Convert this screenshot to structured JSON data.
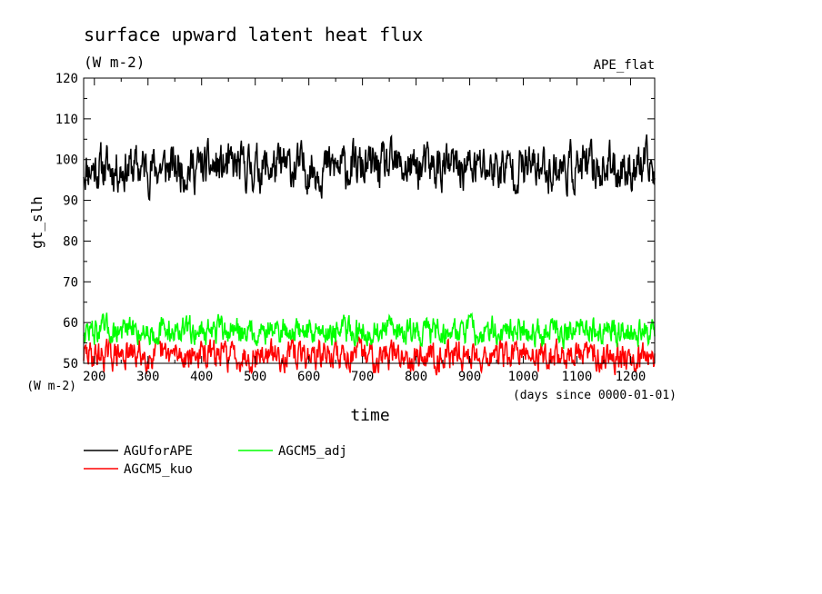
{
  "chart_data": {
    "type": "line",
    "title": "surface upward latent heat flux",
    "subtitle": "(W m-2)",
    "top_right_label": "APE_flat",
    "xlabel": "time",
    "x_unit_note": "(days since 0000-01-01)",
    "ylabel": "gt_slh",
    "y_unit_note": "(W m-2)",
    "xlim": [
      180,
      1245
    ],
    "ylim": [
      50,
      120
    ],
    "x_ticks": [
      200,
      300,
      400,
      500,
      600,
      700,
      800,
      900,
      1000,
      1100,
      1200
    ],
    "x_tick_labels": [
      "200",
      "300",
      "400",
      "500",
      "600",
      "700",
      "800",
      "900",
      "1000",
      "1100",
      "1200"
    ],
    "y_ticks": [
      50,
      60,
      70,
      80,
      90,
      100,
      110,
      120
    ],
    "y_tick_labels": [
      "50",
      "60",
      "70",
      "80",
      "90",
      "100",
      "110",
      "120"
    ],
    "grid": false,
    "legend_placement": "below",
    "series": [
      {
        "name": "AGUforAPE",
        "color": "#000000",
        "x": [
          180,
          1245
        ],
        "y": [
          98,
          98
        ],
        "mean": 98,
        "spread": 4,
        "seed": 11
      },
      {
        "name": "AGCM5_kuo",
        "color": "#ff0000",
        "x": [
          180,
          1245
        ],
        "y": [
          52,
          52
        ],
        "mean": 52,
        "spread": 2.5,
        "seed": 29
      },
      {
        "name": "AGCM5_adj",
        "color": "#00ff00",
        "x": [
          180,
          1245
        ],
        "y": [
          58,
          58
        ],
        "mean": 58,
        "spread": 2.4,
        "seed": 47
      }
    ]
  }
}
